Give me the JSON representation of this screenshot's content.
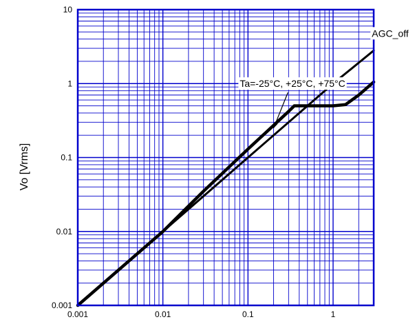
{
  "chart_data": {
    "type": "line",
    "title": "",
    "xlabel": "",
    "ylabel": "Vo [Vrms]",
    "xscale": "log",
    "yscale": "log",
    "xlim": [
      0.001,
      3.0
    ],
    "ylim": [
      0.001,
      10
    ],
    "grid": true,
    "x_tick_labels": [
      "0.001",
      "0.01",
      "0.1",
      "1"
    ],
    "y_tick_labels": [
      "0.001",
      "0.01",
      "0.1",
      "1",
      "10"
    ],
    "series": [
      {
        "name": "AGC_off",
        "x": [
          0.001,
          0.01,
          0.1,
          1,
          3.0
        ],
        "y": [
          0.001,
          0.01,
          0.1,
          1,
          2.8
        ]
      },
      {
        "name": "",
        "x": [
          0.001,
          0.01,
          0.03,
          0.1,
          0.3,
          0.35,
          0.5,
          1,
          1.4,
          2,
          3.0
        ],
        "y": [
          0.001,
          0.01,
          0.035,
          0.13,
          0.42,
          0.5,
          0.5,
          0.5,
          0.52,
          0.7,
          1.05
        ]
      }
    ],
    "annotations": [
      {
        "text": "AGC_off",
        "x": 2.85,
        "y": 4.3
      },
      {
        "text": "Ta=-25°C, +25°C, +75°C",
        "x": 0.08,
        "y": 0.9,
        "arrow_to": [
          0.2,
          0.25
        ]
      }
    ]
  }
}
